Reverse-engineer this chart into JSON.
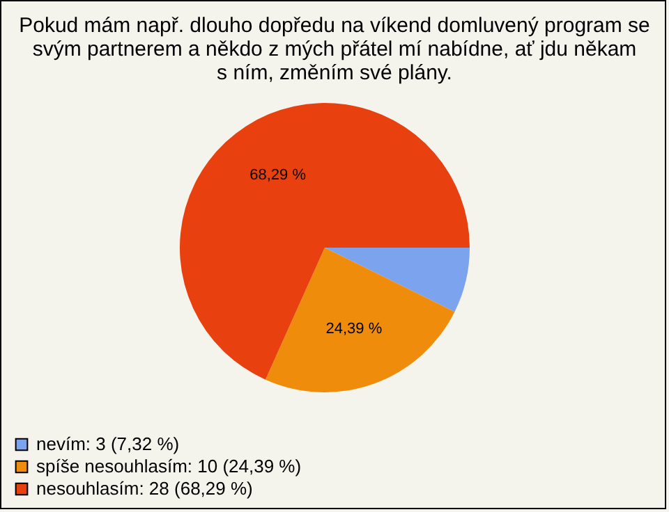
{
  "chart_data": {
    "type": "pie",
    "title": "Pokud mám např. dlouho dopředu na víkend domluvený program se svým partnerem a někdo z mých přátel mí nabídne, ať jdu někam s ním, změním své plány.",
    "categories": [
      "nevím: 3 (7,32 %)",
      "spíše nesouhlasím: 10 (24,39 %)",
      "nesouhlasím: 28 (68,29 %)"
    ],
    "values": [
      7.32,
      24.39,
      68.29
    ],
    "colors": [
      "#7ba3ee",
      "#f08c0c",
      "#e8400e"
    ],
    "value_labels": [
      null,
      "24,39 %",
      "68,29 %"
    ],
    "legend": "bottom left"
  }
}
